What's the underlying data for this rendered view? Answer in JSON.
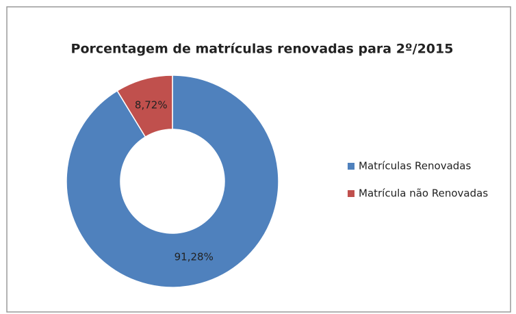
{
  "chart_data": {
    "type": "donut",
    "title": "Porcentagem de matrículas renovadas para 2º/2015",
    "categories": [
      "Matrículas Renovadas",
      "Matrícula não Renovadas"
    ],
    "values": [
      91.28,
      8.72
    ],
    "value_labels": [
      "91,28%",
      "8,72%"
    ],
    "colors": [
      "#4f81bd",
      "#c0504d"
    ],
    "legend": "right"
  }
}
